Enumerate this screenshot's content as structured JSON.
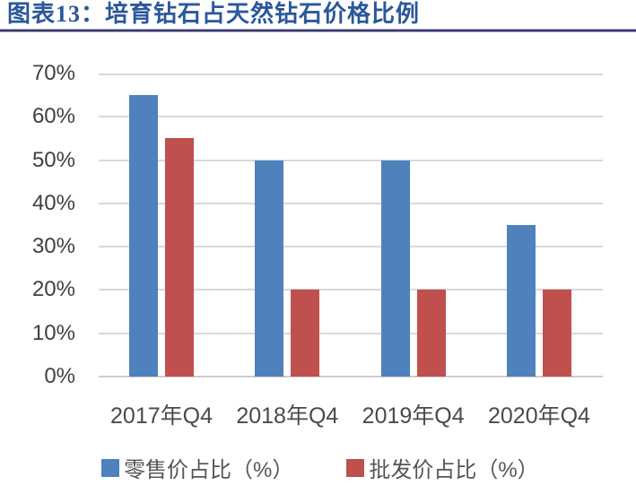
{
  "figure": {
    "title": "图表13：培育钻石占天然钻石价格比例"
  },
  "chart_data": {
    "type": "bar",
    "categories": [
      "2017年Q4",
      "2018年Q4",
      "2019年Q4",
      "2020年Q4"
    ],
    "series": [
      {
        "name": "零售价占比（%）",
        "key": "retail",
        "color": "#4F81BD",
        "values": [
          65,
          50,
          50,
          35
        ]
      },
      {
        "name": "批发价占比（%）",
        "key": "wholesale",
        "color": "#C0504D",
        "values": [
          55,
          20,
          20,
          20
        ]
      }
    ],
    "title": "",
    "xlabel": "",
    "ylabel": "",
    "ylim": [
      0,
      70
    ],
    "ytick_step": 10,
    "yticks": [
      "0%",
      "10%",
      "20%",
      "30%",
      "40%",
      "50%",
      "60%",
      "70%"
    ],
    "grid": true,
    "legend_position": "bottom"
  },
  "colors": {
    "title_text": "#2B579A",
    "title_rule": "#3A3A6E",
    "retail_blue": "#4F81BD",
    "wholesale_red": "#C0504D",
    "gridline": "#D9D9D9",
    "axis_text": "#4A4A4A"
  }
}
